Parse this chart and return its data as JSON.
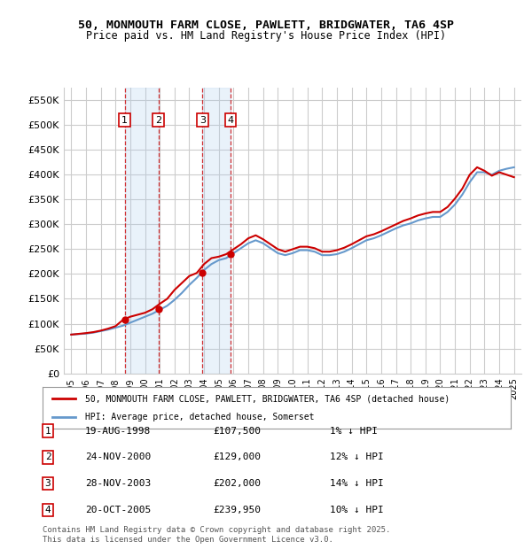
{
  "title": "50, MONMOUTH FARM CLOSE, PAWLETT, BRIDGWATER, TA6 4SP",
  "subtitle": "Price paid vs. HM Land Registry's House Price Index (HPI)",
  "ylabel": "",
  "ylim": [
    0,
    575000
  ],
  "yticks": [
    0,
    50000,
    100000,
    150000,
    200000,
    250000,
    300000,
    350000,
    400000,
    450000,
    500000,
    550000
  ],
  "ytick_labels": [
    "£0",
    "£50K",
    "£100K",
    "£150K",
    "£200K",
    "£250K",
    "£300K",
    "£350K",
    "£400K",
    "£450K",
    "£500K",
    "£550K"
  ],
  "red_color": "#cc0000",
  "blue_color": "#6699cc",
  "grid_color": "#cccccc",
  "bg_color": "#ffffff",
  "legend_label_red": "50, MONMOUTH FARM CLOSE, PAWLETT, BRIDGWATER, TA6 4SP (detached house)",
  "legend_label_blue": "HPI: Average price, detached house, Somerset",
  "footer": "Contains HM Land Registry data © Crown copyright and database right 2025.\nThis data is licensed under the Open Government Licence v3.0.",
  "transactions": [
    {
      "num": 1,
      "date": "19-AUG-1998",
      "date_x": 1998.63,
      "price": 107500,
      "pct": "1%",
      "dir": "↓"
    },
    {
      "num": 2,
      "date": "24-NOV-2000",
      "date_x": 2000.9,
      "price": 129000,
      "pct": "12%",
      "dir": "↓"
    },
    {
      "num": 3,
      "date": "28-NOV-2003",
      "date_x": 2003.9,
      "price": 202000,
      "pct": "14%",
      "dir": "↓"
    },
    {
      "num": 4,
      "date": "20-OCT-2005",
      "date_x": 2005.8,
      "price": 239950,
      "pct": "10%",
      "dir": "↓"
    }
  ],
  "hpi_data": {
    "x": [
      1995,
      1995.5,
      1996,
      1996.5,
      1997,
      1997.5,
      1998,
      1998.5,
      1999,
      1999.5,
      2000,
      2000.5,
      2001,
      2001.5,
      2002,
      2002.5,
      2003,
      2003.5,
      2004,
      2004.5,
      2005,
      2005.5,
      2006,
      2006.5,
      2007,
      2007.5,
      2008,
      2008.5,
      2009,
      2009.5,
      2010,
      2010.5,
      2011,
      2011.5,
      2012,
      2012.5,
      2013,
      2013.5,
      2014,
      2014.5,
      2015,
      2015.5,
      2016,
      2016.5,
      2017,
      2017.5,
      2018,
      2018.5,
      2019,
      2019.5,
      2020,
      2020.5,
      2021,
      2021.5,
      2022,
      2022.5,
      2023,
      2023.5,
      2024,
      2024.5,
      2025
    ],
    "y": [
      78000,
      79000,
      80000,
      82000,
      85000,
      88000,
      92000,
      96000,
      102000,
      108000,
      114000,
      120000,
      128000,
      136000,
      148000,
      162000,
      178000,
      192000,
      208000,
      220000,
      228000,
      232000,
      242000,
      252000,
      262000,
      268000,
      262000,
      252000,
      242000,
      238000,
      242000,
      248000,
      248000,
      245000,
      238000,
      238000,
      240000,
      245000,
      252000,
      260000,
      268000,
      272000,
      278000,
      285000,
      292000,
      298000,
      302000,
      308000,
      312000,
      315000,
      315000,
      325000,
      340000,
      360000,
      385000,
      405000,
      405000,
      400000,
      408000,
      412000,
      415000
    ]
  },
  "red_data": {
    "x": [
      1995,
      1995.5,
      1996,
      1996.5,
      1997,
      1997.5,
      1998,
      1998.5,
      1999,
      1999.5,
      2000,
      2000.5,
      2001,
      2001.5,
      2002,
      2002.5,
      2003,
      2003.5,
      2004,
      2004.5,
      2005,
      2005.5,
      2006,
      2006.5,
      2007,
      2007.5,
      2008,
      2008.5,
      2009,
      2009.5,
      2010,
      2010.5,
      2011,
      2011.5,
      2012,
      2012.5,
      2013,
      2013.5,
      2014,
      2014.5,
      2015,
      2015.5,
      2016,
      2016.5,
      2017,
      2017.5,
      2018,
      2018.5,
      2019,
      2019.5,
      2020,
      2020.5,
      2021,
      2021.5,
      2022,
      2022.5,
      2023,
      2023.5,
      2024,
      2024.5,
      2025
    ],
    "y": [
      78000,
      79500,
      81000,
      83000,
      86000,
      90000,
      95000,
      107500,
      114000,
      118000,
      122000,
      129000,
      140000,
      150000,
      168000,
      182000,
      196000,
      202000,
      220000,
      232000,
      235000,
      239950,
      250000,
      260000,
      272000,
      278000,
      270000,
      260000,
      250000,
      245000,
      250000,
      255000,
      255000,
      252000,
      245000,
      245000,
      248000,
      253000,
      260000,
      268000,
      276000,
      280000,
      286000,
      293000,
      300000,
      307000,
      312000,
      318000,
      322000,
      325000,
      325000,
      335000,
      352000,
      372000,
      400000,
      415000,
      408000,
      398000,
      405000,
      400000,
      395000
    ]
  },
  "xtick_years": [
    1995,
    1996,
    1997,
    1998,
    1999,
    2000,
    2001,
    2002,
    2003,
    2004,
    2005,
    2006,
    2007,
    2008,
    2009,
    2010,
    2011,
    2012,
    2013,
    2014,
    2015,
    2016,
    2017,
    2018,
    2019,
    2020,
    2021,
    2022,
    2023,
    2024,
    2025
  ],
  "xlim": [
    1994.5,
    2025.5
  ]
}
